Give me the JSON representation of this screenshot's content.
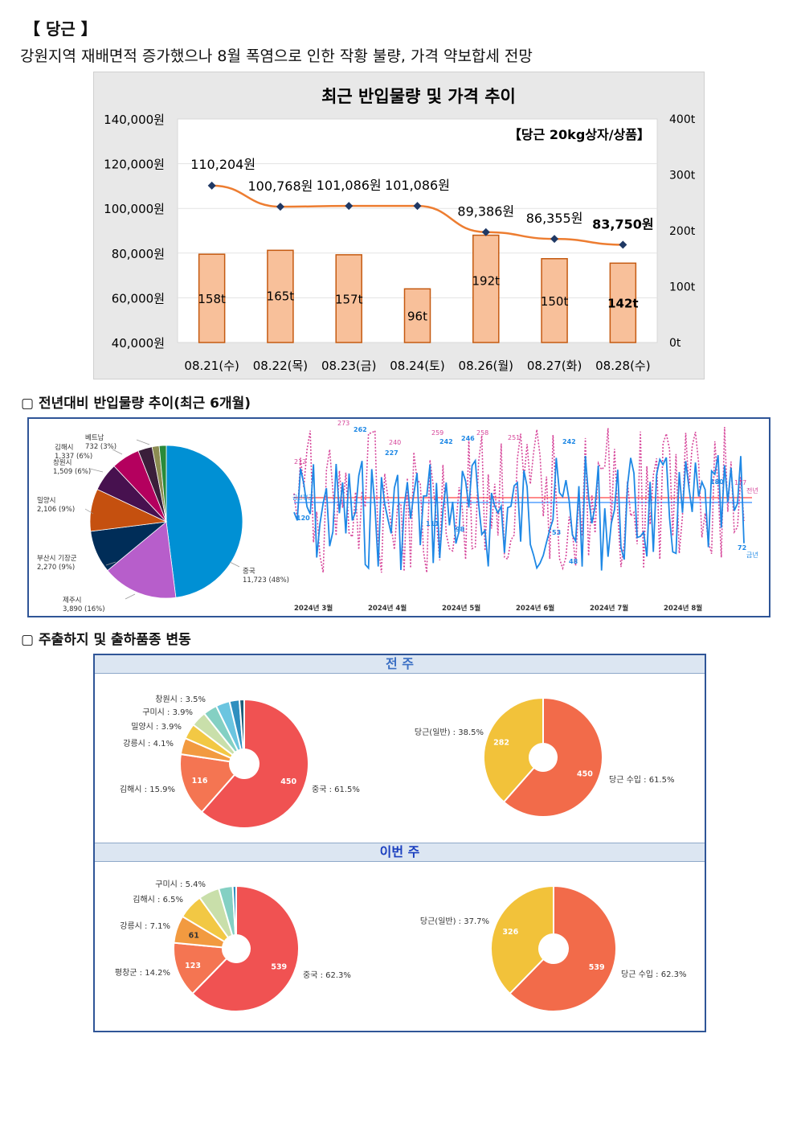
{
  "header": {
    "title": "【 당근 】",
    "subtitle": "강원지역 재배면적 증가했으나 8월 폭염으로 인한 작황 불량, 가격 약보합세 전망"
  },
  "sections": {
    "yoy": "▢ 전년대비 반입물량 추이(최근 6개월)",
    "origin": "▢ 주출하지 및 출하품종 변동"
  },
  "chart_data": [
    {
      "type": "bar+line",
      "title": "최근 반입물량 및 가격 추이",
      "annotation": "【당근 20kg상자/상품】",
      "categories": [
        "08.21(수)",
        "08.22(목)",
        "08.23(금)",
        "08.24(토)",
        "08.26(월)",
        "08.27(화)",
        "08.28(수)"
      ],
      "bar_values": [
        158,
        165,
        157,
        96,
        192,
        150,
        142
      ],
      "bar_labels": [
        "158t",
        "165t",
        "157t",
        "96t",
        "192t",
        "150t",
        "142t"
      ],
      "line_values": [
        110204,
        100768,
        101086,
        101086,
        89386,
        86355,
        83750
      ],
      "line_labels": [
        "110,204원",
        "100,768원",
        "101,086원",
        "101,086원",
        "89,386원",
        "86,355원",
        "83,750원"
      ],
      "left_ticks": [
        "140,000원",
        "120,000원",
        "100,000원",
        "80,000원",
        "60,000원",
        "40,000원"
      ],
      "right_ticks": [
        "400t",
        "300t",
        "200t",
        "100t",
        "0t"
      ],
      "left_range": [
        40000,
        140000
      ],
      "right_range": [
        0,
        400
      ],
      "colors": {
        "bar": "#f8c09a",
        "bar_border": "#c55a11",
        "line": "#ed7d31",
        "marker": "#1f3864"
      }
    },
    {
      "type": "pie",
      "slices": [
        {
          "label": "중국",
          "text": "11,723 (48%)",
          "value": 48,
          "color": "#0090d4"
        },
        {
          "label": "제주시",
          "text": "3,890 (16%)",
          "value": 16,
          "color": "#b75ecb"
        },
        {
          "label": "부산시 기장군",
          "text": "2,270 (9%)",
          "value": 9,
          "color": "#002d58"
        },
        {
          "label": "밀양시",
          "text": "2,106 (9%)",
          "value": 9,
          "color": "#c5500f"
        },
        {
          "label": "창원시",
          "text": "1,509 (6%)",
          "value": 6,
          "color": "#47114f"
        },
        {
          "label": "김해시",
          "text": "1,337 (6%)",
          "value": 6,
          "color": "#b4005e"
        },
        {
          "label": "베트남",
          "text": "732 (3%)",
          "value": 3,
          "color": "#3a1e3a"
        },
        {
          "label": "",
          "text": "",
          "value": 1.5,
          "color": "#8c8c52"
        },
        {
          "label": "",
          "text": "",
          "value": 1.5,
          "color": "#2a8a3a"
        }
      ]
    },
    {
      "type": "line",
      "x_ticks": [
        "2024년 3월",
        "2024년 4월",
        "2024년 5월",
        "2024년 6월",
        "2024년 7월",
        "2024년 8월"
      ],
      "series": [
        {
          "name": "금년",
          "color": "#1e88e5",
          "peak_labels": [
            "120",
            "262",
            "227",
            "242",
            "246",
            "242",
            "180",
            "72",
            "111",
            "98",
            "53",
            "48"
          ]
        },
        {
          "name": "전년",
          "color": "#d6469a",
          "peak_labels": [
            "212",
            "273",
            "240",
            "259",
            "258",
            "251",
            "177"
          ]
        }
      ],
      "avg_labels": [
        "금년평균"
      ]
    },
    {
      "type": "donut",
      "group": "전 주",
      "slices": [
        {
          "label": "중국 : 61.5%",
          "value": 61.5,
          "inner": "450",
          "color": "#f05252"
        },
        {
          "label": "김해시 : 15.9%",
          "value": 15.9,
          "inner": "116",
          "color": "#f47552"
        },
        {
          "label": "강릉시 : 4.1%",
          "value": 4.1,
          "inner": "",
          "color": "#f29a40"
        },
        {
          "label": "밀양시 : 3.9%",
          "value": 3.9,
          "inner": "",
          "color": "#f2c844"
        },
        {
          "label": "구미시 : 3.9%",
          "value": 3.9,
          "inner": "",
          "color": "#c9dfaa"
        },
        {
          "label": "창원시 : 3.5%",
          "value": 3.5,
          "inner": "",
          "color": "#84d0c3"
        },
        {
          "label": "",
          "value": 3.5,
          "inner": "",
          "color": "#6bc5e0"
        },
        {
          "label": "",
          "value": 2.5,
          "inner": "",
          "color": "#2f8fbf"
        },
        {
          "label": "",
          "value": 1.2,
          "inner": "",
          "color": "#1b5e7a"
        }
      ]
    },
    {
      "type": "donut",
      "group": "전 주",
      "slices": [
        {
          "label": "당근 수입 : 61.5%",
          "value": 61.5,
          "inner": "450",
          "color": "#f26b4a"
        },
        {
          "label": "당근(일반) : 38.5%",
          "value": 38.5,
          "inner": "282",
          "color": "#f2c23a"
        }
      ]
    },
    {
      "type": "donut",
      "group": "이번 주",
      "slices": [
        {
          "label": "중국 : 62.3%",
          "value": 62.3,
          "inner": "539",
          "color": "#f05252"
        },
        {
          "label": "평창군 : 14.2%",
          "value": 14.2,
          "inner": "123",
          "color": "#f47552"
        },
        {
          "label": "강릉시 : 7.1%",
          "value": 7.1,
          "inner": "61",
          "color": "#f29a40"
        },
        {
          "label": "김해시 : 6.5%",
          "value": 6.5,
          "inner": "",
          "color": "#f2c844"
        },
        {
          "label": "구미시 : 5.4%",
          "value": 5.4,
          "inner": "",
          "color": "#c9dfaa"
        },
        {
          "label": "",
          "value": 3.6,
          "inner": "",
          "color": "#84d0c3"
        },
        {
          "label": "",
          "value": 0.9,
          "inner": "",
          "color": "#2f8fbf"
        }
      ]
    },
    {
      "type": "donut",
      "group": "이번 주",
      "slices": [
        {
          "label": "당근 수입 : 62.3%",
          "value": 62.3,
          "inner": "539",
          "color": "#f26b4a"
        },
        {
          "label": "당근(일반) : 37.7%",
          "value": 37.7,
          "inner": "326",
          "color": "#f2c23a"
        }
      ]
    }
  ],
  "bands": {
    "prev": "전 주",
    "curr": "이번 주"
  }
}
